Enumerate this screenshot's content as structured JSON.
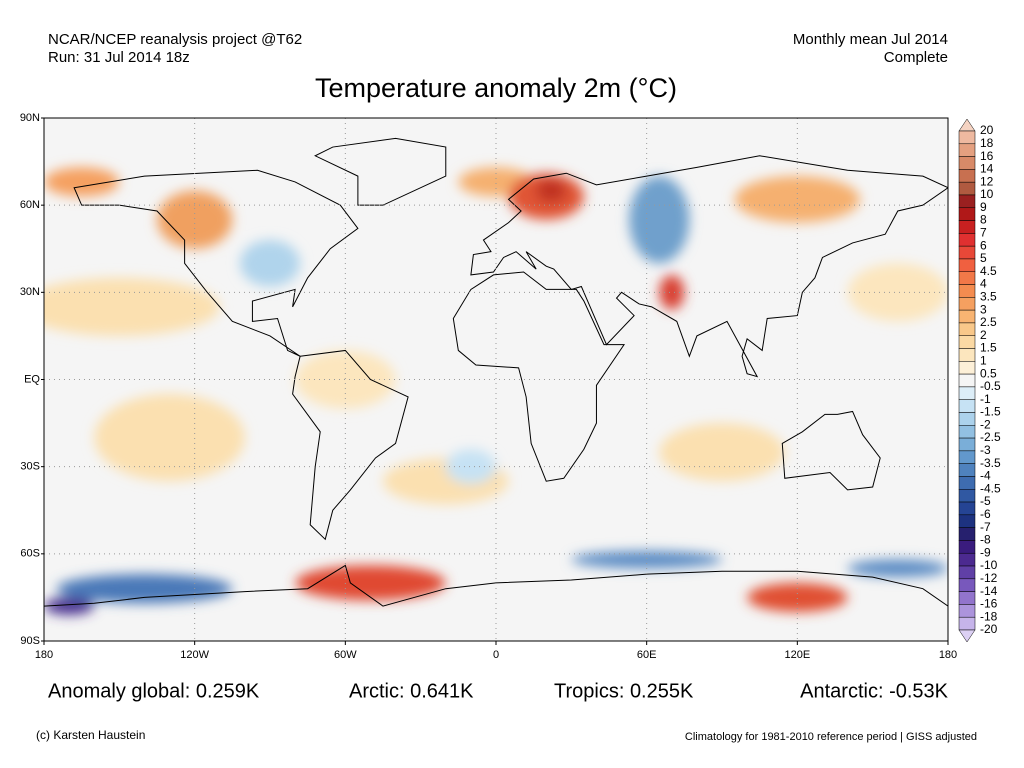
{
  "header": {
    "left": [
      "NCAR/NCEP reanalysis project @T62",
      "Run: 31 Jul 2014 18z"
    ],
    "right": [
      "Monthly mean Jul 2014",
      "Complete"
    ],
    "title": "Temperature anomaly 2m (°C)"
  },
  "map": {
    "lat_ticks": [
      {
        "value": 90,
        "label": "90N"
      },
      {
        "value": 60,
        "label": "60N"
      },
      {
        "value": 30,
        "label": "30N"
      },
      {
        "value": 0,
        "label": "EQ"
      },
      {
        "value": -30,
        "label": "30S"
      },
      {
        "value": -60,
        "label": "60S"
      },
      {
        "value": -90,
        "label": "90S"
      }
    ],
    "lon_ticks": [
      {
        "value": -180,
        "label": "180"
      },
      {
        "value": -120,
        "label": "120W"
      },
      {
        "value": -60,
        "label": "60W"
      },
      0,
      {
        "value": 60,
        "label": "60E"
      },
      {
        "value": 120,
        "label": "120E"
      },
      180
    ],
    "grid": true
  },
  "colorbar": {
    "labels": [
      20,
      18,
      16,
      14,
      12,
      10,
      9,
      8,
      7,
      6,
      5,
      4.5,
      4,
      3.5,
      3,
      2.5,
      2,
      1.5,
      1,
      0.5,
      -0.5,
      -1,
      -1.5,
      -2,
      -2.5,
      -3,
      -3.5,
      -4,
      -4.5,
      -5,
      -6,
      -7,
      -8,
      -9,
      -10,
      -12,
      -14,
      -16,
      -18,
      -20
    ],
    "colors": [
      "#f5d3c2",
      "#eeb9a0",
      "#e4a080",
      "#d88a68",
      "#c87050",
      "#b05a40",
      "#9a2020",
      "#b01818",
      "#c82020",
      "#e03030",
      "#e84838",
      "#f06040",
      "#f27848",
      "#f48c50",
      "#f5a060",
      "#f8b472",
      "#f9c88a",
      "#fbd9a4",
      "#fce6be",
      "#fdf0d8",
      "#f5f5f5",
      "#ddeef8",
      "#c6e2f4",
      "#acd2ec",
      "#92c0e2",
      "#7aaed8",
      "#6298cc",
      "#4f82be",
      "#3e6cb0",
      "#3058a2",
      "#254494",
      "#1d3280",
      "#26206e",
      "#3a1c7e",
      "#4c2a90",
      "#6040a6",
      "#7858bc",
      "#9274cc",
      "#ac94dc",
      "#c6b4ea",
      "#dcd0f4"
    ]
  },
  "stats": [
    "Anomaly global: 0.259K",
    "Arctic: 0.641K",
    "Tropics: 0.255K",
    "Antarctic: -0.53K"
  ],
  "footer": {
    "left": "(c) Karsten Haustein",
    "right": "Climatology for 1981-2010 reference period | GISS adjusted"
  }
}
